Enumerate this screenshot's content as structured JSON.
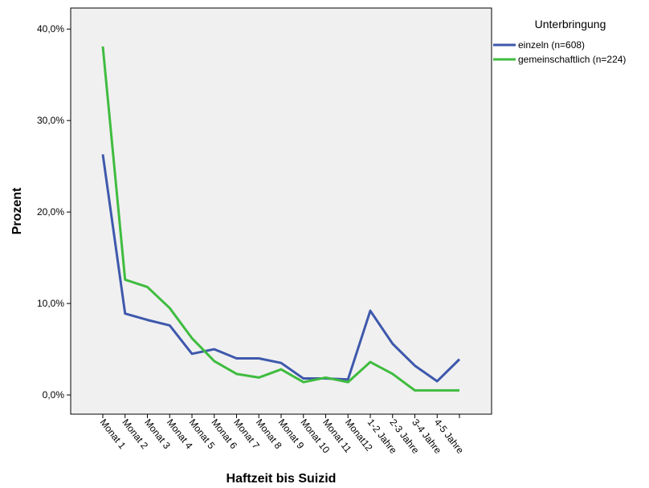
{
  "chart_data": {
    "type": "line",
    "x_label": "Haftzeit bis Suizid",
    "y_label": "Prozent",
    "legend_title": "Unterbringung",
    "categories": [
      "Monat 1",
      "Monat 2",
      "Monat 3",
      "Monat 4",
      "Monat 5",
      "Monat 6",
      "Monat 7",
      "Monat 8",
      "Monat 9",
      "Monat 10",
      "Monat 11",
      "Monat12",
      "1-2 Jahre",
      "2-3 Jahre",
      "3-4 Jahre",
      "4-5 Jahre",
      null
    ],
    "series": [
      {
        "name": "einzeln (n=608)",
        "color": "#3e58ac",
        "values": [
          26.3,
          8.9,
          8.2,
          7.6,
          4.5,
          5.0,
          4.0,
          4.0,
          3.5,
          1.8,
          1.8,
          1.7,
          9.2,
          5.6,
          3.2,
          1.5,
          3.9
        ]
      },
      {
        "name": "gemeinschaftlich (n=224)",
        "color": "#3fbc3f",
        "values": [
          38.1,
          12.6,
          11.8,
          9.5,
          6.2,
          3.7,
          2.3,
          1.9,
          2.8,
          1.4,
          1.9,
          1.4,
          3.6,
          2.3,
          0.5,
          0.5,
          0.5
        ]
      }
    ],
    "ylim": [
      -2.1,
      42.3
    ],
    "yticks": [
      {
        "value": 0,
        "label": "0,0%"
      },
      {
        "value": 10,
        "label": "10,0%"
      },
      {
        "value": 20,
        "label": "20,0%"
      },
      {
        "value": 30,
        "label": "30,0%"
      },
      {
        "value": 40,
        "label": "40,0%"
      }
    ],
    "grid": false,
    "legend_position": "right"
  }
}
